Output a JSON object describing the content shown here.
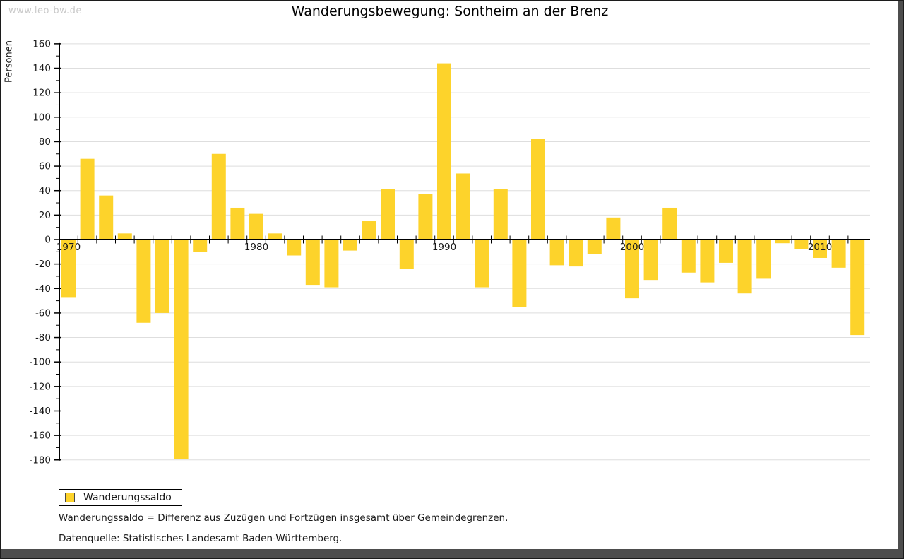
{
  "watermark": "www.leo-bw.de",
  "title": "Wanderungsbewegung: Sontheim an der Brenz",
  "legend": {
    "label": "Wanderungssaldo",
    "swatch_color": "#FDD32B"
  },
  "footnotes": [
    "Wanderungssaldo = Differenz aus Zuzügen und Fortzügen insgesamt über Gemeindegrenzen.",
    "Datenquelle: Statistisches Landesamt Baden-Württemberg."
  ],
  "colors": {
    "bar": "#FDD32B",
    "grid": "#dedede",
    "axis": "#000000",
    "text": "#1a1a1a",
    "watermark": "#c9c9c9",
    "frame": "#4d4d4d"
  },
  "chart_data": {
    "type": "bar",
    "title": "Wanderungsbewegung: Sontheim an der Brenz",
    "xlabel": "",
    "ylabel": "Personen",
    "series_name": "Wanderungssaldo",
    "years": [
      1970,
      1971,
      1972,
      1973,
      1974,
      1975,
      1976,
      1977,
      1978,
      1979,
      1980,
      1981,
      1982,
      1983,
      1984,
      1985,
      1986,
      1987,
      1988,
      1989,
      1990,
      1991,
      1992,
      1993,
      1994,
      1995,
      1996,
      1997,
      1998,
      1999,
      2000,
      2001,
      2002,
      2003,
      2004,
      2005,
      2006,
      2007,
      2008,
      2009,
      2010,
      2011,
      2012
    ],
    "values": [
      -47,
      66,
      36,
      5,
      -68,
      -60,
      -179,
      -10,
      70,
      26,
      21,
      5,
      -13,
      -37,
      -39,
      -9,
      15,
      41,
      -24,
      37,
      144,
      54,
      -39,
      41,
      -55,
      82,
      -21,
      -22,
      -12,
      18,
      -48,
      -33,
      26,
      -27,
      -35,
      -19,
      -44,
      -32,
      -3,
      -8,
      -15,
      -23,
      -78
    ],
    "ylim": [
      -180,
      160
    ],
    "ytick_step": 20,
    "ytick_minor_step": 10,
    "xtick_labels": [
      "1970",
      "1980",
      "1990",
      "2000",
      "2010"
    ],
    "bar_color": "#FDD32B",
    "grid": true,
    "legend_position": "bottom-left"
  }
}
